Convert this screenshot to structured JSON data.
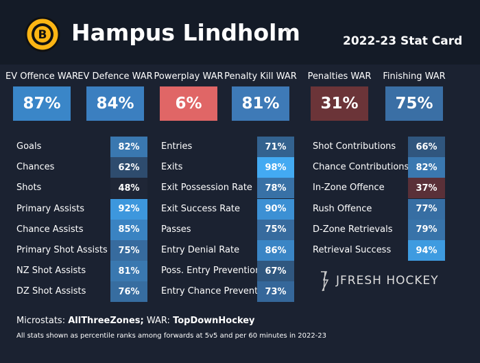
{
  "header": {
    "player": "Hampus Lindholm",
    "title": "2022-23 Stat Card"
  },
  "war": [
    {
      "label": "EV Offence WAR",
      "value": "87%",
      "color": "#3a86c8"
    },
    {
      "label": "EV Defence WAR",
      "value": "84%",
      "color": "#3b7fc0"
    },
    {
      "label": "Powerplay WAR",
      "value": "6%",
      "color": "#e06666"
    },
    {
      "label": "Penalty Kill WAR",
      "value": "81%",
      "color": "#3e7ab7"
    },
    {
      "label": "Penalties WAR",
      "value": "31%",
      "color": "#6b3438"
    },
    {
      "label": "Finishing WAR",
      "value": "75%",
      "color": "#3a6fa5"
    }
  ],
  "stats": [
    [
      {
        "label": "Goals",
        "value": "82%",
        "color": "#3a78b0"
      },
      {
        "label": "Chances",
        "value": "62%",
        "color": "#2e4c6e"
      },
      {
        "label": "Shots",
        "value": "48%",
        "color": "#1f2636"
      },
      {
        "label": "Primary Assists",
        "value": "92%",
        "color": "#3d97dd"
      },
      {
        "label": "Chance Assists",
        "value": "85%",
        "color": "#3a83c2"
      },
      {
        "label": "Primary Shot Assists",
        "value": "75%",
        "color": "#376b9e"
      },
      {
        "label": "NZ Shot Assists",
        "value": "81%",
        "color": "#3a78b0"
      },
      {
        "label": "DZ Shot Assists",
        "value": "76%",
        "color": "#376da0"
      }
    ],
    [
      {
        "label": "Entries",
        "value": "71%",
        "color": "#33628f"
      },
      {
        "label": "Exits",
        "value": "98%",
        "color": "#43aaf2"
      },
      {
        "label": "Exit Possession Rate",
        "value": "78%",
        "color": "#3871a6"
      },
      {
        "label": "Exit Success Rate",
        "value": "90%",
        "color": "#3c90d4"
      },
      {
        "label": "Passes",
        "value": "75%",
        "color": "#376b9e"
      },
      {
        "label": "Entry Denial Rate",
        "value": "86%",
        "color": "#3a85c5"
      },
      {
        "label": "Poss. Entry Prevention",
        "value": "67%",
        "color": "#30577f"
      },
      {
        "label": "Entry Chance Prevention",
        "value": "73%",
        "color": "#35679a"
      }
    ],
    [
      {
        "label": "Shot Contributions",
        "value": "66%",
        "color": "#30567e"
      },
      {
        "label": "Chance Contributions",
        "value": "82%",
        "color": "#3a78b0"
      },
      {
        "label": "In-Zone Offence",
        "value": "37%",
        "color": "#5a3038"
      },
      {
        "label": "Rush Offence",
        "value": "77%",
        "color": "#376ea3"
      },
      {
        "label": "D-Zone Retrievals",
        "value": "79%",
        "color": "#3873a9"
      },
      {
        "label": "Retrieval Success",
        "value": "94%",
        "color": "#3e9be0"
      }
    ]
  ],
  "brand": "JFRESH HOCKEY",
  "footer": {
    "parts": [
      "Microstats: ",
      "AllThreeZones;",
      " WAR: ",
      "TopDownHockey"
    ],
    "note": "All stats shown as percentile ranks among forwards at 5v5 and per 60 minutes in 2022-23"
  }
}
